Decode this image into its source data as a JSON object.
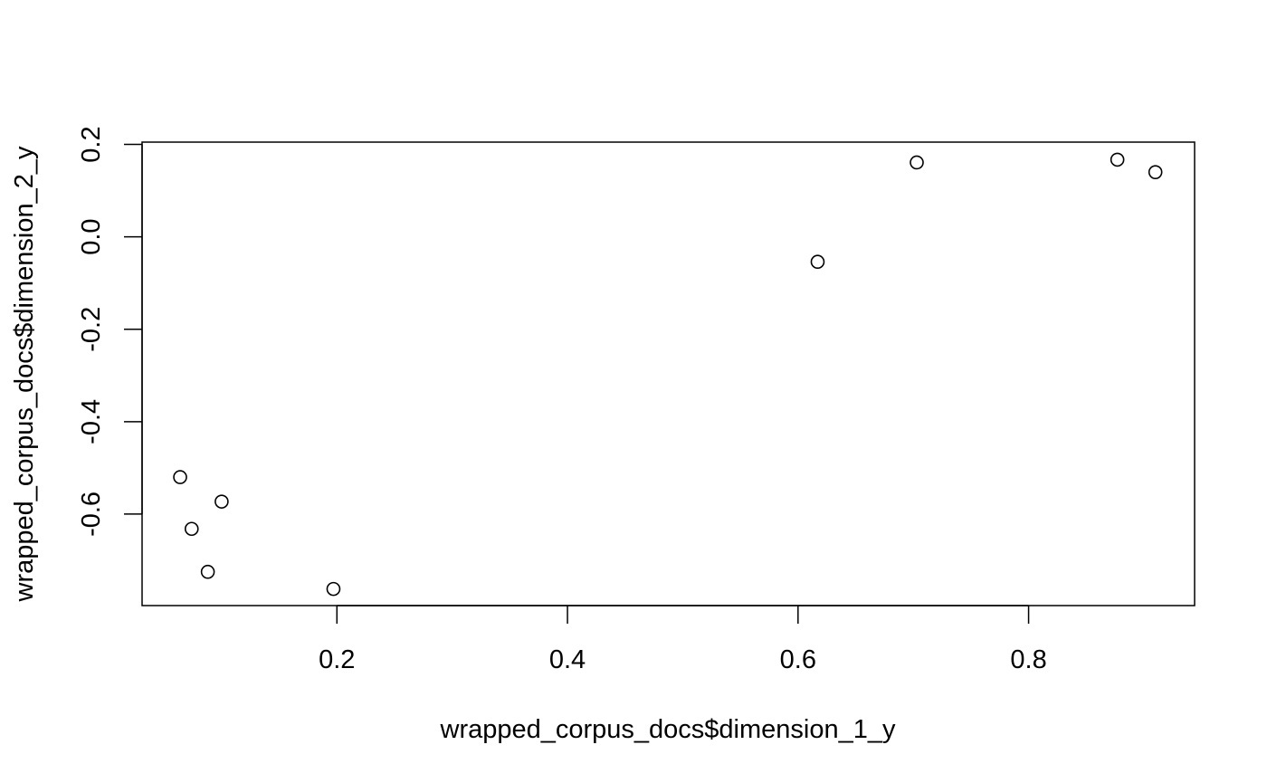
{
  "chart_data": {
    "type": "scatter",
    "title": "",
    "xlabel": "wrapped_corpus_docs$dimension_1_y",
    "ylabel": "wrapped_corpus_docs$dimension_2_y",
    "xlim": [
      0.031,
      0.944
    ],
    "ylim": [
      -0.798,
      0.205
    ],
    "x_ticks": [
      0.2,
      0.4,
      0.6,
      0.8
    ],
    "x_tick_labels": [
      "0.2",
      "0.4",
      "0.6",
      "0.8"
    ],
    "y_ticks": [
      -0.6,
      -0.4,
      -0.2,
      0.0,
      0.2
    ],
    "y_tick_labels": [
      "-0.6",
      "-0.4",
      "-0.2",
      "0.0",
      "0.2"
    ],
    "grid": false,
    "legend": "none",
    "marker": "open-circle",
    "color": "#000000",
    "points": [
      {
        "x": 0.064,
        "y": -0.52
      },
      {
        "x": 0.074,
        "y": -0.632
      },
      {
        "x": 0.088,
        "y": -0.725
      },
      {
        "x": 0.1,
        "y": -0.573
      },
      {
        "x": 0.197,
        "y": -0.762
      },
      {
        "x": 0.617,
        "y": -0.054
      },
      {
        "x": 0.703,
        "y": 0.161
      },
      {
        "x": 0.877,
        "y": 0.167
      },
      {
        "x": 0.91,
        "y": 0.14
      }
    ]
  }
}
